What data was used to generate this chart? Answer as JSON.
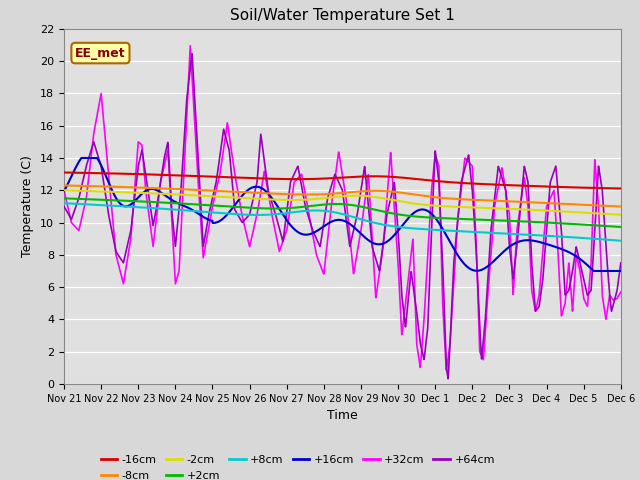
{
  "title": "Soil/Water Temperature Set 1",
  "xlabel": "Time",
  "ylabel": "Temperature (C)",
  "watermark": "EE_met",
  "ylim": [
    0,
    22
  ],
  "background_color": "#d8d8d8",
  "plot_bg_color": "#e0e0e0",
  "series": {
    "-16cm": {
      "color": "#dd0000",
      "linewidth": 1.5
    },
    "-8cm": {
      "color": "#ff8800",
      "linewidth": 1.5
    },
    "-2cm": {
      "color": "#dddd00",
      "linewidth": 1.5
    },
    "+2cm": {
      "color": "#00bb00",
      "linewidth": 1.5
    },
    "+8cm": {
      "color": "#00cccc",
      "linewidth": 1.5
    },
    "+16cm": {
      "color": "#0000cc",
      "linewidth": 1.5
    },
    "+32cm": {
      "color": "#ff00ff",
      "linewidth": 1.2
    },
    "+64cm": {
      "color": "#9900bb",
      "linewidth": 1.2
    }
  },
  "xtick_labels": [
    "Nov 21",
    "Nov 22",
    "Nov 23",
    "Nov 24",
    "Nov 25",
    "Nov 26",
    "Nov 27",
    "Nov 28",
    "Nov 29",
    "Nov 30",
    "Dec 1",
    "Dec 2",
    "Dec 3",
    "Dec 4",
    "Dec 5",
    "Dec 6"
  ],
  "ytick_values": [
    0,
    2,
    4,
    6,
    8,
    10,
    12,
    14,
    16,
    18,
    20,
    22
  ],
  "figsize": [
    6.4,
    4.8
  ],
  "dpi": 100
}
